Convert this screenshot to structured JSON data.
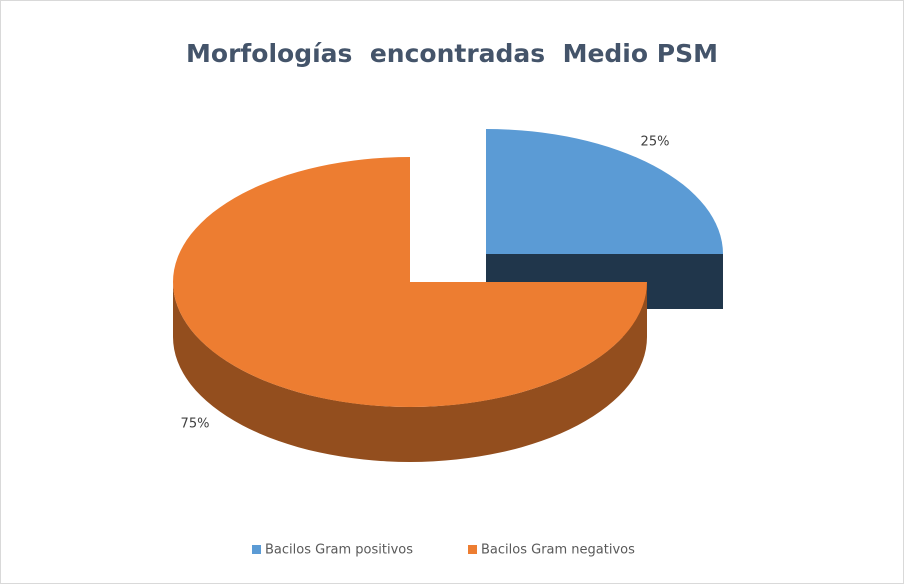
{
  "chart_data": {
    "type": "pie",
    "title": "Morfologías  encontradas  Medio PSM",
    "categories": [
      "Bacilos Gram positivos",
      "Bacilos Gram negativos"
    ],
    "values": [
      25,
      75
    ],
    "value_labels": [
      "25%",
      "75%"
    ],
    "colors": [
      "#5b9bd5",
      "#ed7d31"
    ],
    "legend": "bottom"
  }
}
